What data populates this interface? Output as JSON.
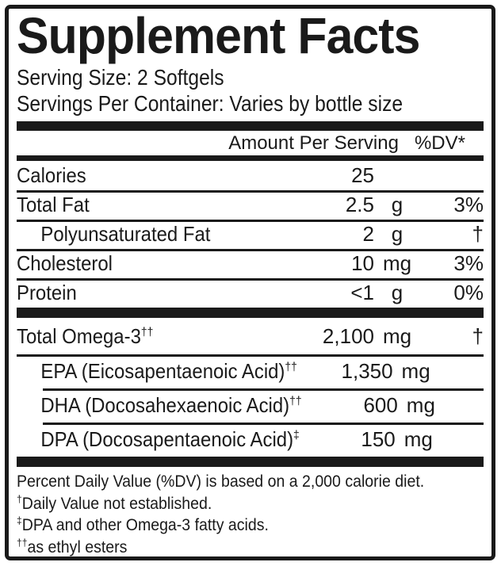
{
  "label": {
    "title": "Supplement Facts",
    "serving_size": "Serving Size: 2 Softgels",
    "servings_per_container": "Servings Per Container: Varies by bottle size",
    "columns": {
      "amount_header": "Amount Per Serving",
      "dv_header": "%DV*"
    },
    "nutrients": [
      {
        "name": "Calories",
        "sup": "",
        "amount": "25",
        "unit": "",
        "dv": ""
      },
      {
        "name": "Total Fat",
        "sup": "",
        "amount": "2.5",
        "unit": "g",
        "dv": "3%"
      },
      {
        "name": "Polyunsaturated Fat",
        "sup": "",
        "amount": "2",
        "unit": "g",
        "dv": "†"
      },
      {
        "name": "Cholesterol",
        "sup": "",
        "amount": "10",
        "unit": "mg",
        "dv": "3%"
      },
      {
        "name": "Protein",
        "sup": "",
        "amount": "<1",
        "unit": "g",
        "dv": "0%"
      }
    ],
    "omega_section": [
      {
        "name": "Total Omega-3",
        "sup": "††",
        "amount": "2,100",
        "unit": "mg",
        "dv": "†"
      },
      {
        "name": "EPA (Eicosapentaenoic Acid)",
        "sup": "††",
        "amount": "1,350",
        "unit": "mg",
        "dv": "†"
      },
      {
        "name": "DHA (Docosahexaenoic Acid)",
        "sup": "††",
        "amount": "600",
        "unit": "mg",
        "dv": "†"
      },
      {
        "name": "DPA (Docosapentaenoic Acid)",
        "sup": "‡",
        "amount": "150",
        "unit": "mg",
        "dv": "†"
      }
    ],
    "footnotes": [
      {
        "sup": "",
        "text": "Percent Daily Value (%DV) is based on a 2,000 calorie diet."
      },
      {
        "sup": "†",
        "text": "Daily Value not established."
      },
      {
        "sup": "‡",
        "text": "DPA and other Omega-3 fatty acids."
      },
      {
        "sup": "††",
        "text": "as ethyl esters"
      }
    ],
    "colors": {
      "ink": "#1a1a1a",
      "background": "#ffffff"
    }
  }
}
